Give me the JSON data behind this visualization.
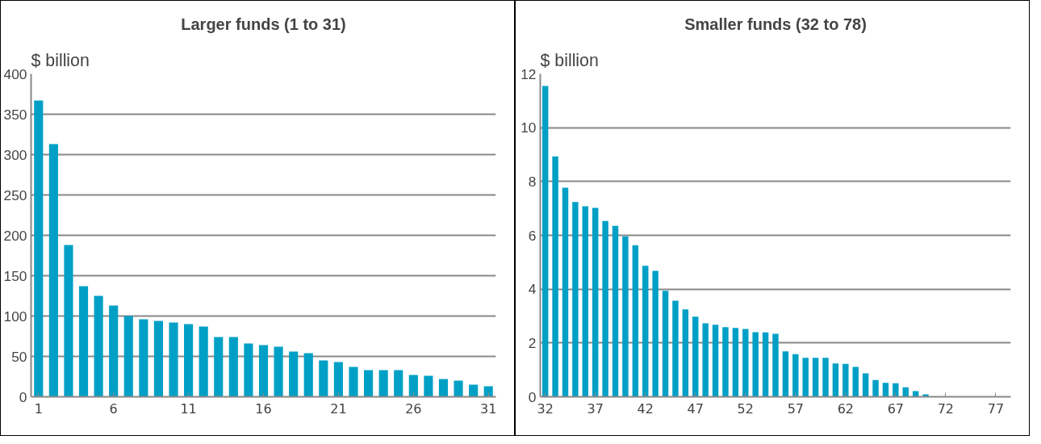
{
  "chart_data": [
    {
      "type": "bar",
      "title": "Larger funds (1 to 31)",
      "ylabel": "$ billion",
      "x": [
        1,
        2,
        3,
        4,
        5,
        6,
        7,
        8,
        9,
        10,
        11,
        12,
        13,
        14,
        15,
        16,
        17,
        18,
        19,
        20,
        21,
        22,
        23,
        24,
        25,
        26,
        27,
        28,
        29,
        30,
        31
      ],
      "values": [
        367,
        313,
        188,
        137,
        125,
        113,
        100,
        96,
        94,
        92,
        90,
        87,
        74,
        74,
        66,
        64,
        62,
        56,
        54,
        45,
        43,
        37,
        33,
        33,
        33,
        27,
        26,
        22,
        20,
        15,
        13
      ],
      "color": "#00a0c6",
      "xlim": [
        0.5,
        31.5
      ],
      "xticks": [
        1,
        6,
        11,
        16,
        21,
        26,
        31
      ],
      "ylim": [
        0,
        400
      ],
      "yticks": [
        0,
        50,
        100,
        150,
        200,
        250,
        300,
        350,
        400
      ],
      "grid": "y"
    },
    {
      "type": "bar",
      "title": "Smaller funds (32 to 78)",
      "ylabel": "$ billion",
      "x": [
        32,
        33,
        34,
        35,
        36,
        37,
        38,
        39,
        40,
        41,
        42,
        43,
        44,
        45,
        46,
        47,
        48,
        49,
        50,
        51,
        52,
        53,
        54,
        55,
        56,
        57,
        58,
        59,
        60,
        61,
        62,
        63,
        64,
        65,
        66,
        67,
        68,
        69,
        70
      ],
      "values": [
        11.55,
        8.93,
        7.77,
        7.24,
        7.08,
        7.02,
        6.53,
        6.35,
        5.96,
        5.63,
        4.87,
        4.68,
        3.94,
        3.57,
        3.25,
        2.98,
        2.73,
        2.68,
        2.59,
        2.56,
        2.52,
        2.4,
        2.39,
        2.34,
        1.69,
        1.58,
        1.45,
        1.45,
        1.45,
        1.24,
        1.22,
        1.11,
        0.87,
        0.62,
        0.52,
        0.5,
        0.35,
        0.21,
        0.09
      ],
      "color": "#00a0c6",
      "xlim": [
        31.5,
        78.5
      ],
      "xticks": [
        32,
        37,
        42,
        47,
        52,
        57,
        62,
        67,
        72,
        77
      ],
      "ylim": [
        0,
        12
      ],
      "yticks": [
        0,
        2,
        4,
        6,
        8,
        10,
        12
      ],
      "grid": "y"
    }
  ]
}
